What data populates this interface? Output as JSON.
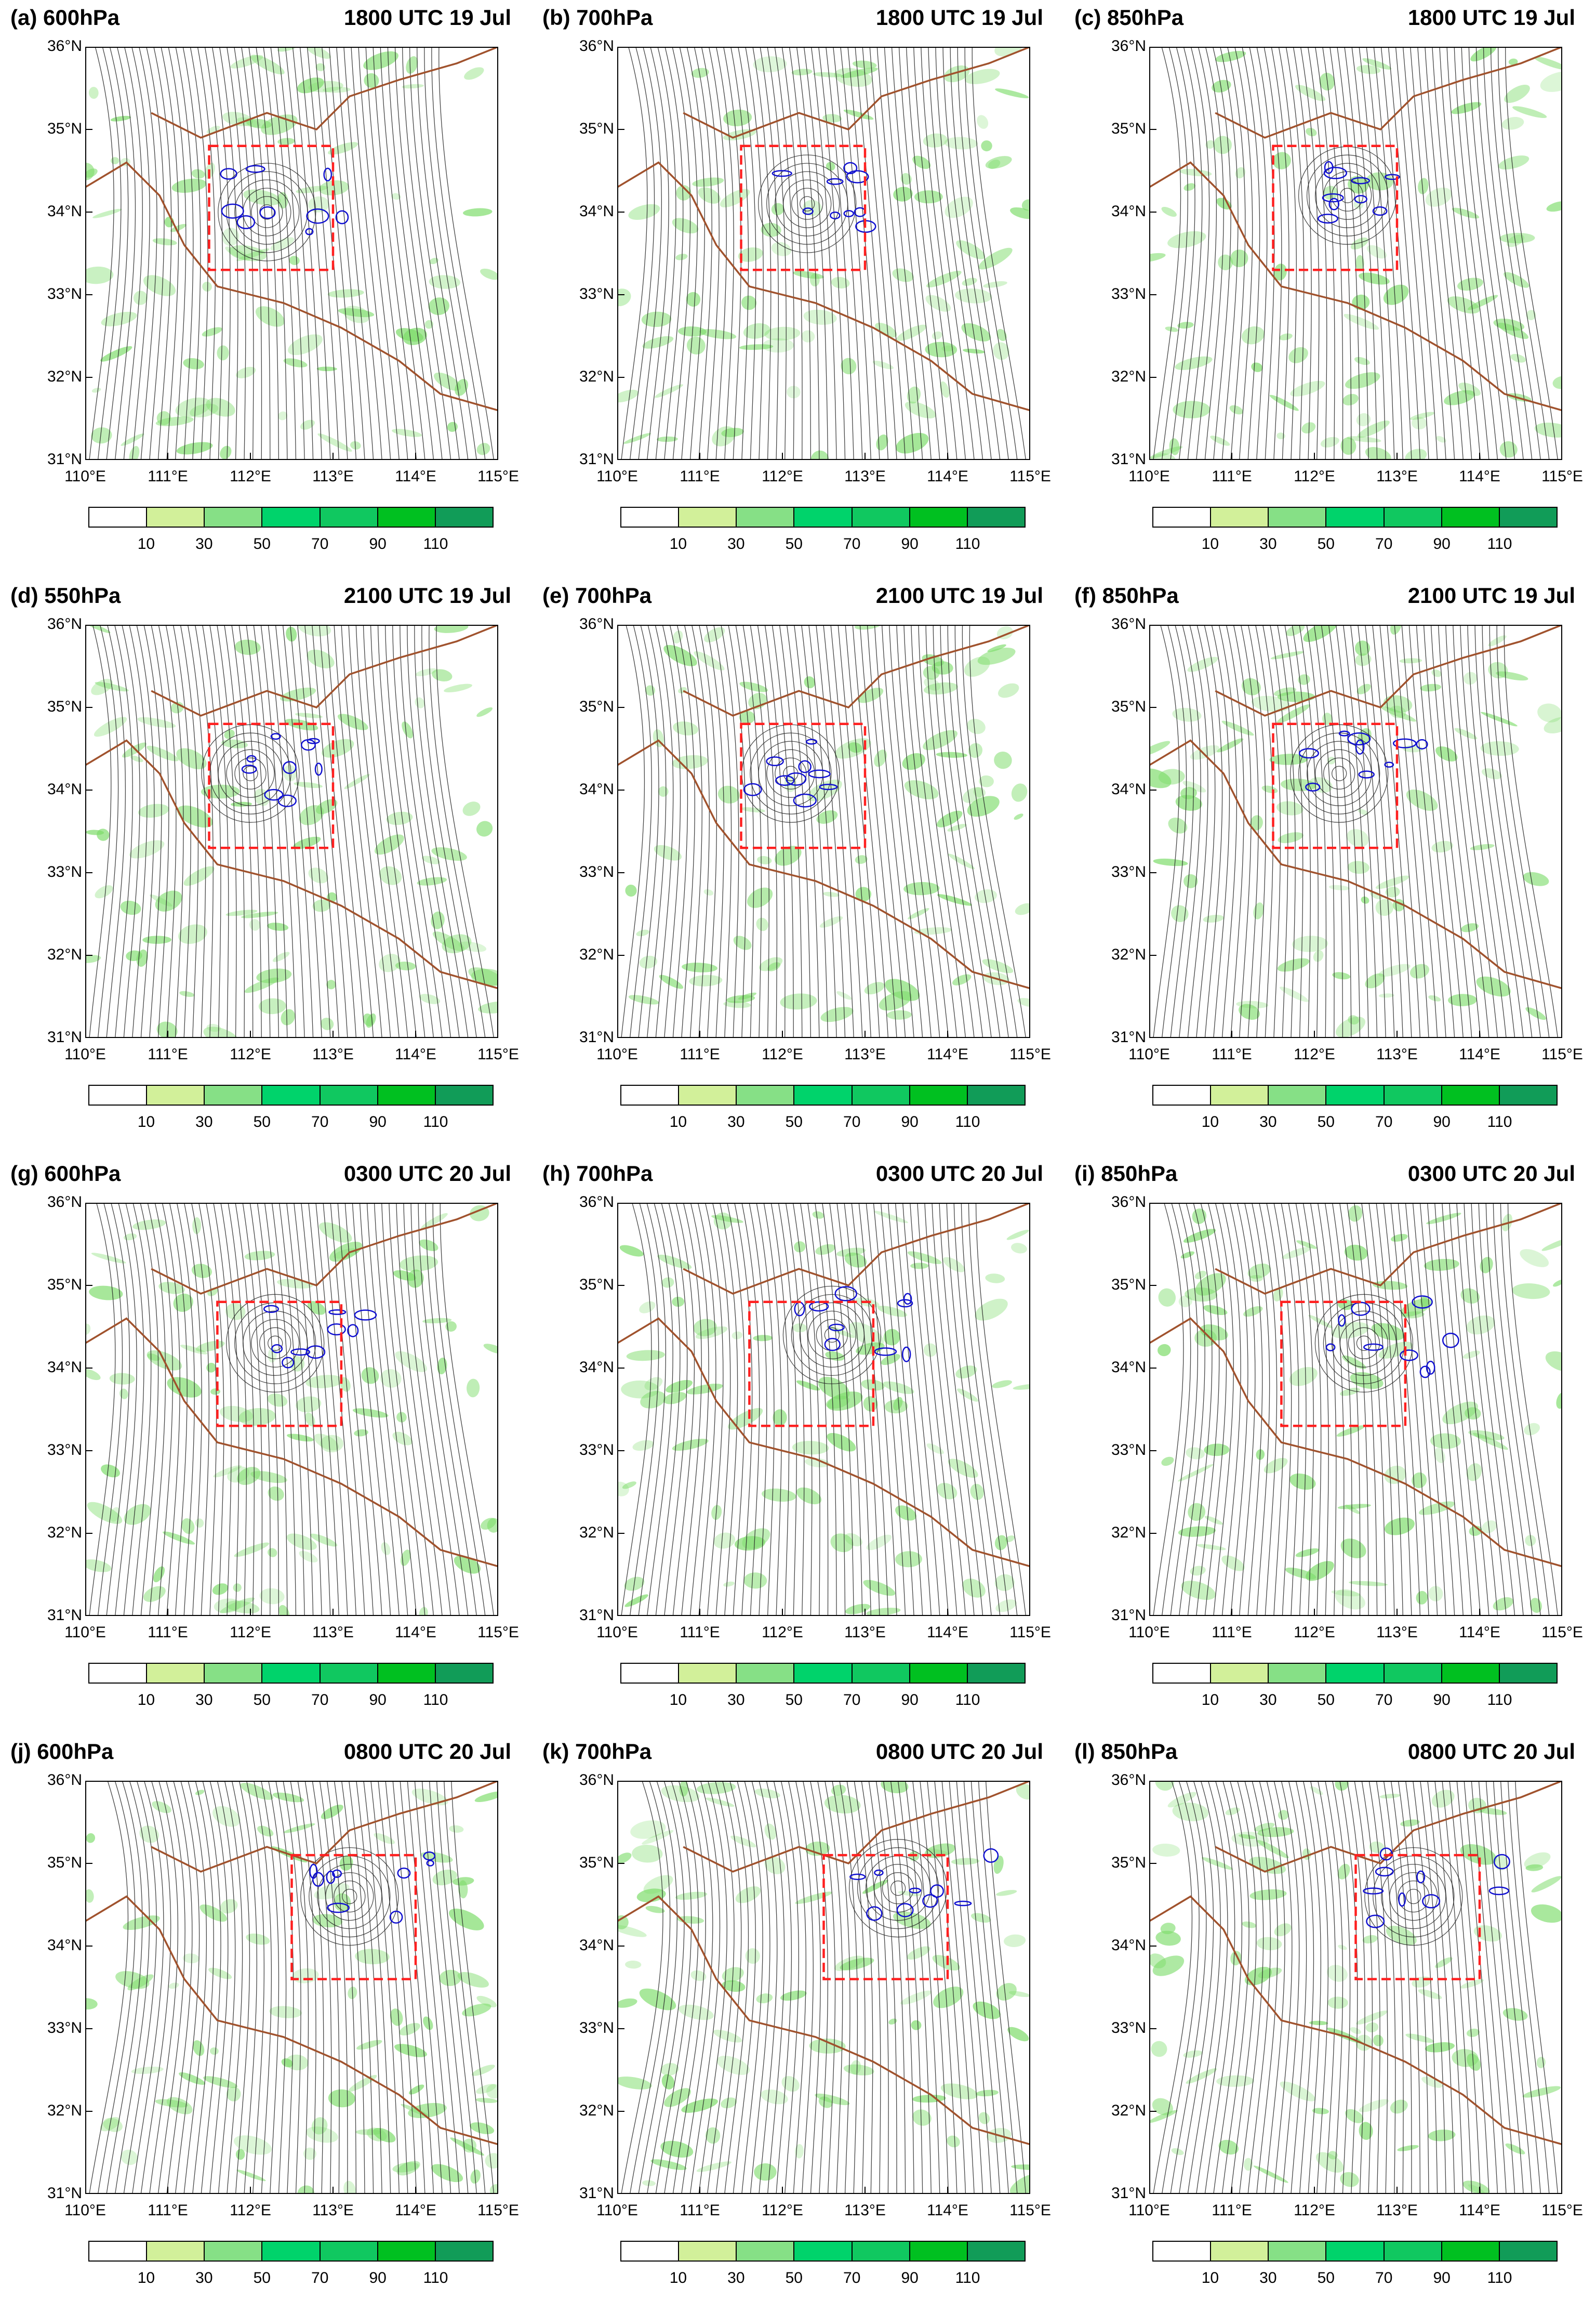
{
  "panels": [
    {
      "level": "(a)  600hPa",
      "time": "1800 UTC 19 Jul",
      "box": [
        111.5,
        33.3,
        113.0,
        34.8
      ],
      "vortex": [
        112.2,
        34.0
      ]
    },
    {
      "level": "(b)  700hPa",
      "time": "1800 UTC 19 Jul",
      "box": [
        111.5,
        33.3,
        113.0,
        34.8
      ],
      "vortex": [
        112.3,
        34.1
      ]
    },
    {
      "level": "(c)  850hPa",
      "time": "1800 UTC 19 Jul",
      "box": [
        111.5,
        33.3,
        113.0,
        34.8
      ],
      "vortex": [
        112.4,
        34.2
      ]
    },
    {
      "level": "(d)  550hPa",
      "time": "2100 UTC 19 Jul",
      "box": [
        111.5,
        33.3,
        113.0,
        34.8
      ],
      "vortex": [
        112.0,
        34.2
      ]
    },
    {
      "level": "(e)  700hPa",
      "time": "2100 UTC 19 Jul",
      "box": [
        111.5,
        33.3,
        113.0,
        34.8
      ],
      "vortex": [
        112.1,
        34.2
      ]
    },
    {
      "level": "(f)  850hPa",
      "time": "2100 UTC 19 Jul",
      "box": [
        111.5,
        33.3,
        113.0,
        34.8
      ],
      "vortex": [
        112.3,
        34.2
      ]
    },
    {
      "level": "(g)  600hPa",
      "time": "0300 UTC 20 Jul",
      "box": [
        111.6,
        33.3,
        113.1,
        34.8
      ],
      "vortex": [
        112.3,
        34.3
      ]
    },
    {
      "level": "(h)  700hPa",
      "time": "0300 UTC 20 Jul",
      "box": [
        111.6,
        33.3,
        113.1,
        34.8
      ],
      "vortex": [
        112.6,
        34.4
      ]
    },
    {
      "level": "(i)  850hPa",
      "time": "0300 UTC 20 Jul",
      "box": [
        111.6,
        33.3,
        113.1,
        34.8
      ],
      "vortex": [
        112.6,
        34.3
      ]
    },
    {
      "level": "(j)  600hPa",
      "time": "0800 UTC 20 Jul",
      "box": [
        112.5,
        33.6,
        114.0,
        35.1
      ],
      "vortex": [
        113.2,
        34.6
      ]
    },
    {
      "level": "(k)  700hPa",
      "time": "0800 UTC 20 Jul",
      "box": [
        112.5,
        33.6,
        114.0,
        35.1
      ],
      "vortex": [
        113.4,
        34.7
      ]
    },
    {
      "level": "(l)  850hPa",
      "time": "0800 UTC 20 Jul",
      "box": [
        112.5,
        33.6,
        114.0,
        35.1
      ],
      "vortex": [
        113.2,
        34.6
      ]
    }
  ],
  "y_ticks": [
    "36°N",
    "35°N",
    "34°N",
    "33°N",
    "32°N",
    "31°N"
  ],
  "x_ticks": [
    "110°E",
    "111°E",
    "112°E",
    "113°E",
    "114°E",
    "115°E"
  ],
  "colorbar": {
    "labels": [
      "10",
      "30",
      "50",
      "70",
      "90",
      "110"
    ],
    "colors": [
      "#ffffff",
      "#d2f09a",
      "#86e086",
      "#00d36b",
      "#10c860",
      "#00c020",
      "#119c58"
    ]
  },
  "map": {
    "lon_range": [
      110,
      115
    ],
    "lat_range": [
      31,
      36
    ],
    "shading_color": "#7ddc6a",
    "contour_color": "#1010d0",
    "box_color": "#ff2020",
    "border_color": "#a0522d",
    "streamline_color": "#222222"
  }
}
